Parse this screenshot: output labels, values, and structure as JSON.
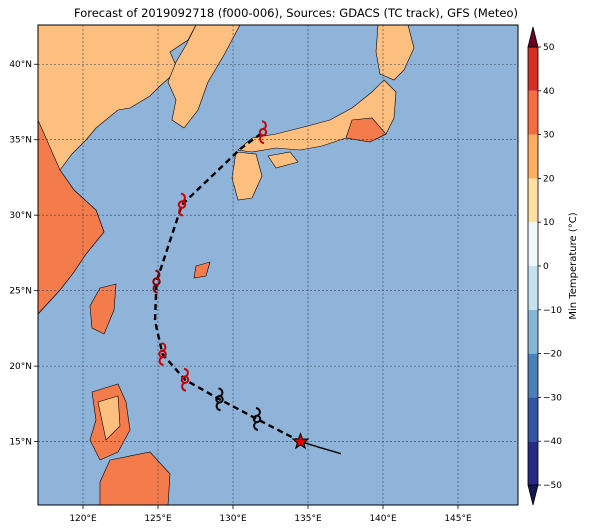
{
  "title": "Forecast of 2019092718 (f000-006), Sources: GDACS (TC track), GFS (Meteo)",
  "map": {
    "lon_range": [
      117,
      149
    ],
    "lat_range": [
      10.8,
      42.6
    ],
    "lon_ticks": [
      {
        "value": 120,
        "label": "120°E"
      },
      {
        "value": 125,
        "label": "125°E"
      },
      {
        "value": 130,
        "label": "130°E"
      },
      {
        "value": 135,
        "label": "135°E"
      },
      {
        "value": 140,
        "label": "140°E"
      },
      {
        "value": 145,
        "label": "145°E"
      }
    ],
    "lat_ticks": [
      {
        "value": 15,
        "label": "15°N"
      },
      {
        "value": 20,
        "label": "20°N"
      },
      {
        "value": 25,
        "label": "25°N"
      },
      {
        "value": 30,
        "label": "30°N"
      },
      {
        "value": 35,
        "label": "35°N"
      },
      {
        "value": 40,
        "label": "40°N"
      }
    ],
    "grid": true,
    "colors": {
      "sea": "#8fb3d9",
      "land_10_20": "#fdbf7f",
      "land_20_30": "#f47b4b",
      "land_30_40": "#d7301f",
      "coast": "#000000"
    }
  },
  "track": {
    "current_position": {
      "lon": 134.5,
      "lat": 15.0,
      "marker": "star"
    },
    "past_track": [
      {
        "lon": 134.5,
        "lat": 15.0
      },
      {
        "lon": 135.8,
        "lat": 14.6
      },
      {
        "lon": 137.2,
        "lat": 14.2
      }
    ],
    "forecast_track": [
      {
        "lon": 134.5,
        "lat": 15.0
      },
      {
        "lon": 131.6,
        "lat": 16.5
      },
      {
        "lon": 129.1,
        "lat": 17.8
      },
      {
        "lon": 126.8,
        "lat": 19.1
      },
      {
        "lon": 125.3,
        "lat": 20.8
      },
      {
        "lon": 124.8,
        "lat": 23.0
      },
      {
        "lon": 124.9,
        "lat": 25.6
      },
      {
        "lon": 126.6,
        "lat": 30.7
      },
      {
        "lon": 130.5,
        "lat": 34.4
      },
      {
        "lon": 132.0,
        "lat": 35.5
      }
    ],
    "storm_symbols": [
      {
        "lon": 131.6,
        "lat": 16.5,
        "color": "#000000"
      },
      {
        "lon": 129.1,
        "lat": 17.8,
        "color": "#000000"
      },
      {
        "lon": 126.8,
        "lat": 19.1,
        "color": "#cc0000"
      },
      {
        "lon": 125.3,
        "lat": 20.8,
        "color": "#cc0000"
      },
      {
        "lon": 124.9,
        "lat": 25.6,
        "color": "#8b0000"
      },
      {
        "lon": 126.6,
        "lat": 30.7,
        "color": "#cc0000"
      },
      {
        "lon": 132.0,
        "lat": 35.5,
        "color": "#cc0000"
      }
    ]
  },
  "colorbar": {
    "label": "Min Temperature (°C)",
    "min": -50,
    "max": 50,
    "bounds": [
      -50,
      -40,
      -30,
      -20,
      -10,
      0,
      10,
      20,
      30,
      40,
      50
    ],
    "tick_labels": [
      "−50",
      "−40",
      "−30",
      "−20",
      "−10",
      "0",
      "10",
      "20",
      "30",
      "40",
      "50"
    ],
    "colors": [
      "#262a85",
      "#3553a0",
      "#4b7fb8",
      "#86b6d6",
      "#c5e3ee",
      "#eef8fb",
      "#fee0a2",
      "#fdae61",
      "#f46d43",
      "#d42f24",
      "#a00b24"
    ],
    "extend_low_color": "#161853",
    "extend_high_color": "#6e0020"
  }
}
